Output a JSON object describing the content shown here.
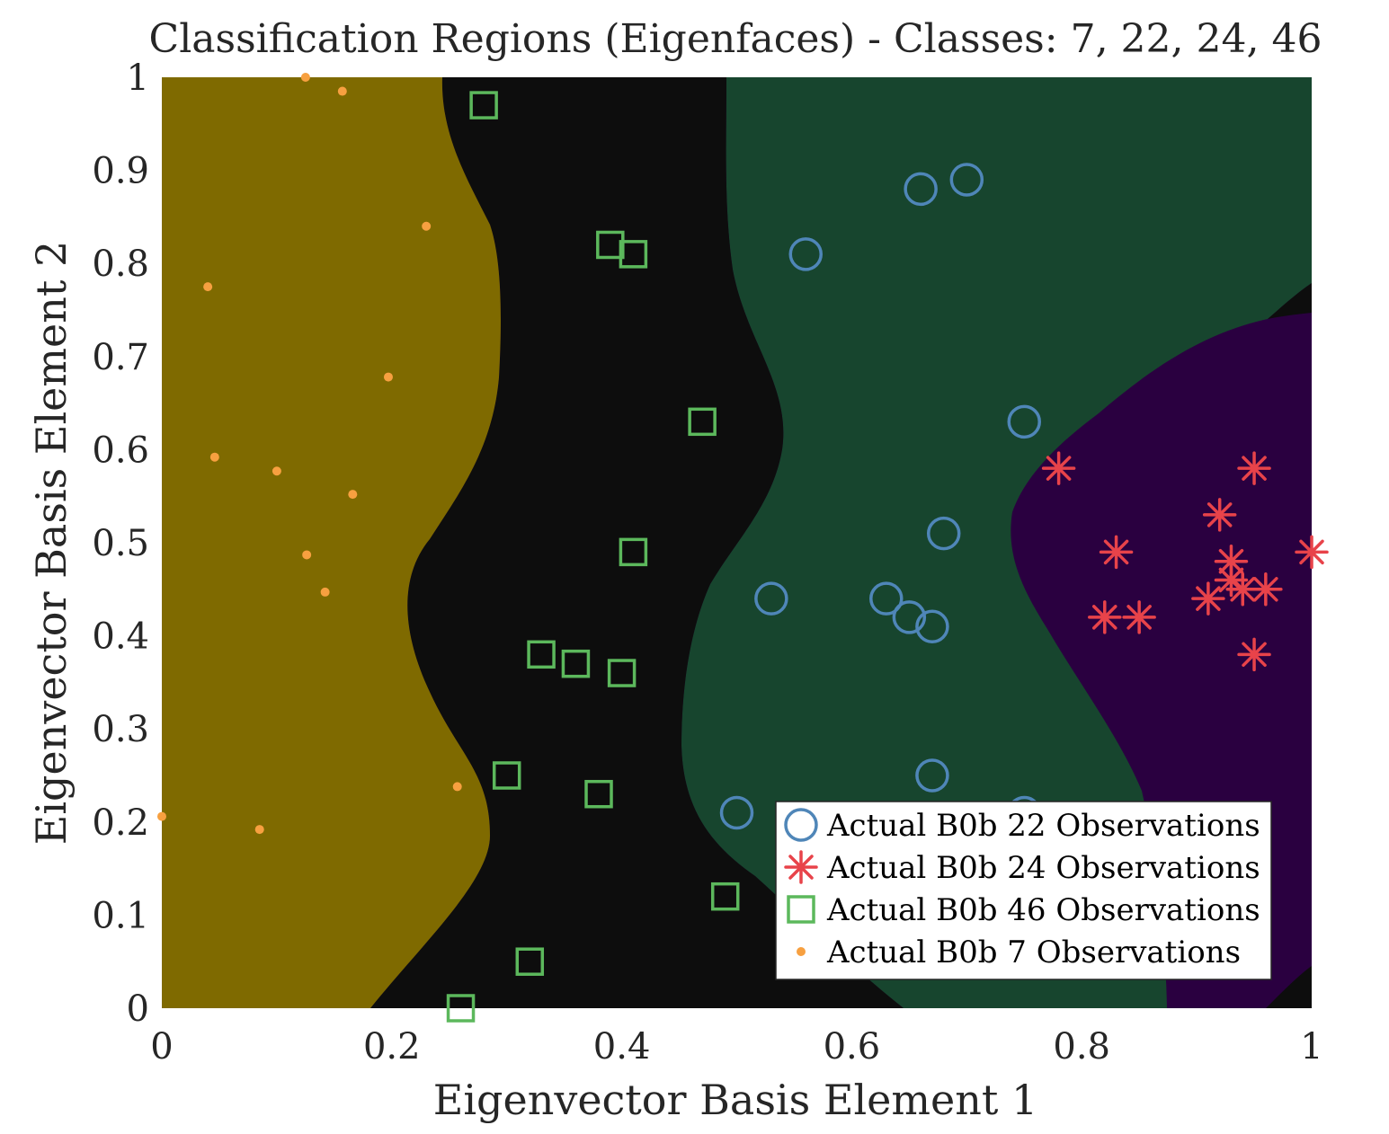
{
  "chart_data": {
    "type": "scatter",
    "title": "Classification Regions (Eigenfaces) - Classes: 7, 22, 24, 46",
    "xlabel": "Eigenvector Basis Element 1",
    "ylabel": "Eigenvector Basis Element 2",
    "xlim": [
      0,
      1
    ],
    "ylim": [
      0,
      1
    ],
    "xticks": [
      "0",
      "0.2",
      "0.4",
      "0.6",
      "0.8",
      "1"
    ],
    "yticks": [
      "0",
      "0.1",
      "0.2",
      "0.3",
      "0.4",
      "0.5",
      "0.6",
      "0.7",
      "0.8",
      "0.9",
      "1"
    ],
    "legend_position": "bottom-right",
    "regions": [
      {
        "class": "7",
        "color": "#7f6a00"
      },
      {
        "class": "46",
        "color": "#0d0d0d"
      },
      {
        "class": "22",
        "color": "#17452e"
      },
      {
        "class": "24",
        "color": "#2a0040"
      }
    ],
    "series": [
      {
        "name": "Actual B0b 22 Observations",
        "marker": "circle",
        "color": "#4f86b8",
        "points": [
          [
            0.66,
            0.88
          ],
          [
            0.7,
            0.89
          ],
          [
            0.56,
            0.81
          ],
          [
            0.75,
            0.63
          ],
          [
            0.68,
            0.51
          ],
          [
            0.53,
            0.44
          ],
          [
            0.63,
            0.44
          ],
          [
            0.65,
            0.42
          ],
          [
            0.67,
            0.41
          ],
          [
            0.67,
            0.25
          ],
          [
            0.5,
            0.21
          ],
          [
            0.75,
            0.21
          ]
        ]
      },
      {
        "name": "Actual B0b 24 Observations",
        "marker": "asterisk",
        "color": "#e8434a",
        "points": [
          [
            0.78,
            0.58
          ],
          [
            0.95,
            0.58
          ],
          [
            0.92,
            0.53
          ],
          [
            0.83,
            0.49
          ],
          [
            1.0,
            0.49
          ],
          [
            0.93,
            0.48
          ],
          [
            0.93,
            0.46
          ],
          [
            0.91,
            0.44
          ],
          [
            0.94,
            0.45
          ],
          [
            0.96,
            0.45
          ],
          [
            0.82,
            0.42
          ],
          [
            0.85,
            0.42
          ],
          [
            0.95,
            0.38
          ]
        ]
      },
      {
        "name": "Actual B0b 46 Observations",
        "marker": "square",
        "color": "#5cb85c",
        "points": [
          [
            0.28,
            0.97
          ],
          [
            0.39,
            0.82
          ],
          [
            0.41,
            0.81
          ],
          [
            0.47,
            0.63
          ],
          [
            0.41,
            0.49
          ],
          [
            0.33,
            0.38
          ],
          [
            0.36,
            0.37
          ],
          [
            0.4,
            0.36
          ],
          [
            0.3,
            0.25
          ],
          [
            0.38,
            0.23
          ],
          [
            0.49,
            0.12
          ],
          [
            0.32,
            0.05
          ],
          [
            0.26,
            0.0
          ]
        ]
      },
      {
        "name": "Actual B0b 7 Observations",
        "marker": "dot",
        "color": "#f7a040",
        "points": [
          [
            0.125,
            1.0
          ],
          [
            0.157,
            0.985
          ],
          [
            0.23,
            0.84
          ],
          [
            0.04,
            0.775
          ],
          [
            0.197,
            0.678
          ],
          [
            0.046,
            0.592
          ],
          [
            0.1,
            0.577
          ],
          [
            0.166,
            0.552
          ],
          [
            0.126,
            0.487
          ],
          [
            0.142,
            0.447
          ],
          [
            0.257,
            0.238
          ],
          [
            0.0,
            0.206
          ],
          [
            0.085,
            0.192
          ]
        ]
      }
    ]
  }
}
